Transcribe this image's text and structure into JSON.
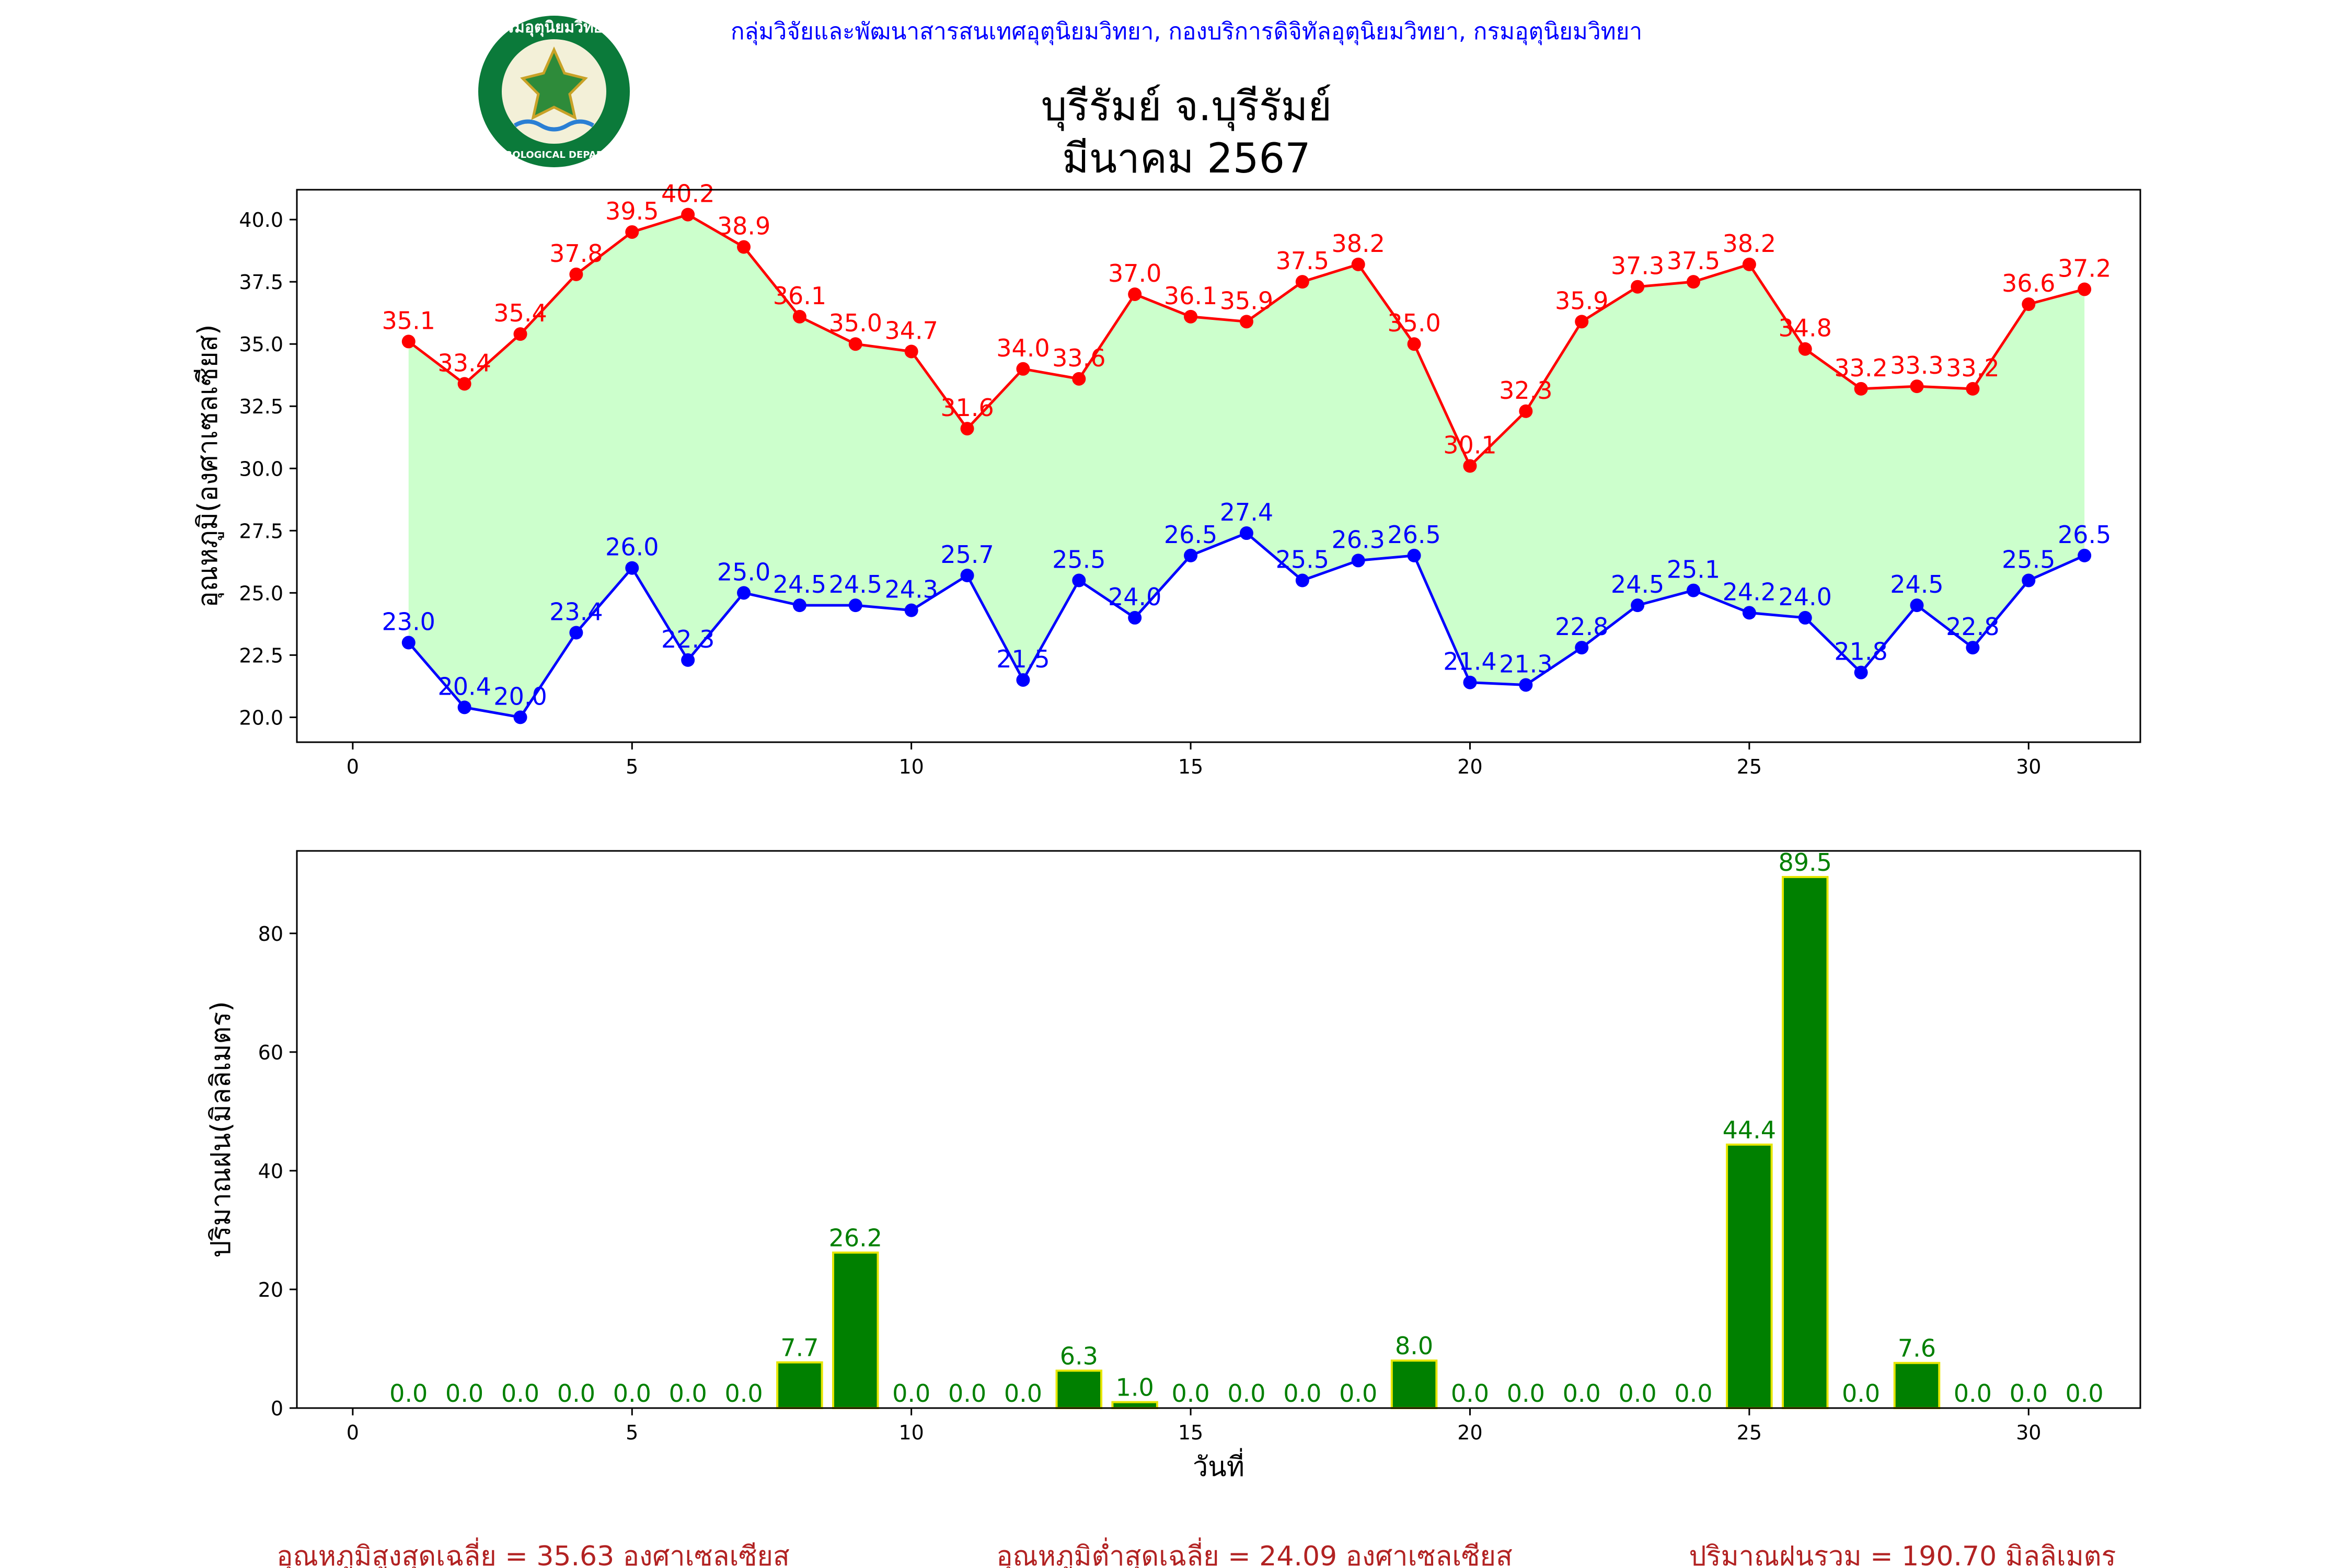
{
  "header": {
    "agency_line": "กลุ่มวิจัยและพัฒนาสารสนเทศอุตุนิยมวิทยา, กองบริการดิจิทัลอุตุนิยมวิทยา, กรมอุตุนิยมวิทยา",
    "station_title": "บุรีรัมย์ จ.บุรีรัมย์",
    "period_title": "มีนาคม 2567",
    "logo": {
      "icon": "meteorological-department-seal",
      "top_text": "กรมอุตุนิยมวิทยา",
      "bottom_text": "METEOROLOGICAL DEPARTMENT"
    }
  },
  "colors": {
    "max_line": "#ff0000",
    "min_line": "#0000ff",
    "fill": "#ccffcc",
    "rain_bar": "#008000",
    "rain_edge": "#e6e600",
    "rain_label": "#008000",
    "agency_text": "#0000ff",
    "summary_text": "#b22222"
  },
  "chart_data": [
    {
      "type": "line",
      "ylabel": "อุณหภูมิ(องศาเซลเซียส)",
      "xlim": [
        -1,
        32
      ],
      "ylim": [
        19.0,
        41.2
      ],
      "xticks": [
        0,
        5,
        10,
        15,
        20,
        25,
        30
      ],
      "yticks": [
        20.0,
        22.5,
        25.0,
        27.5,
        30.0,
        32.5,
        35.0,
        37.5,
        40.0
      ],
      "x": [
        1,
        2,
        3,
        4,
        5,
        6,
        7,
        8,
        9,
        10,
        11,
        12,
        13,
        14,
        15,
        16,
        17,
        18,
        19,
        20,
        21,
        22,
        23,
        24,
        25,
        26,
        27,
        28,
        29,
        30,
        31
      ],
      "series": [
        {
          "key": "max",
          "values": [
            35.1,
            33.4,
            35.4,
            37.8,
            39.5,
            40.2,
            38.9,
            36.1,
            35.0,
            34.7,
            31.6,
            34.0,
            33.6,
            37.0,
            36.1,
            35.9,
            37.5,
            38.2,
            35.0,
            30.1,
            32.3,
            35.9,
            37.3,
            37.5,
            38.2,
            34.8,
            33.2,
            33.3,
            33.2,
            36.6,
            37.2
          ]
        },
        {
          "key": "min",
          "values": [
            23.0,
            20.4,
            20.0,
            23.4,
            26.0,
            22.3,
            25.0,
            24.5,
            24.5,
            24.3,
            25.7,
            21.5,
            25.5,
            24.0,
            26.5,
            27.4,
            25.5,
            26.3,
            26.5,
            21.4,
            21.3,
            22.8,
            24.5,
            25.1,
            24.2,
            24.0,
            21.8,
            24.5,
            22.8,
            25.5,
            26.5
          ]
        }
      ],
      "fill_between": "max-min",
      "grid": false
    },
    {
      "type": "bar",
      "ylabel": "ปริมาณฝน(มิลลิเมตร)",
      "xlabel": "วันที่",
      "xlim": [
        -1,
        32
      ],
      "ylim": [
        0,
        93.9
      ],
      "xticks": [
        0,
        5,
        10,
        15,
        20,
        25,
        30
      ],
      "yticks": [
        0,
        20,
        40,
        60,
        80
      ],
      "x": [
        1,
        2,
        3,
        4,
        5,
        6,
        7,
        8,
        9,
        10,
        11,
        12,
        13,
        14,
        15,
        16,
        17,
        18,
        19,
        20,
        21,
        22,
        23,
        24,
        25,
        26,
        27,
        28,
        29,
        30,
        31
      ],
      "values": [
        0.0,
        0.0,
        0.0,
        0.0,
        0.0,
        0.0,
        0.0,
        7.7,
        26.2,
        0.0,
        0.0,
        0.0,
        6.3,
        1.0,
        0.0,
        0.0,
        0.0,
        0.0,
        8.0,
        0.0,
        0.0,
        0.0,
        0.0,
        0.0,
        44.4,
        89.5,
        0.0,
        7.6,
        0.0,
        0.0,
        0.0
      ],
      "grid": false
    }
  ],
  "summary": {
    "avg_max": "อุณหภูมิสูงสุดเฉลี่ย = 35.63 องศาเซลเซียส",
    "avg_min": "อุณหภูมิต่ำสุดเฉลี่ย = 24.09 องศาเซลเซียส",
    "total_rain": "ปริมาณฝนรวม = 190.70 มิลลิเมตร"
  }
}
